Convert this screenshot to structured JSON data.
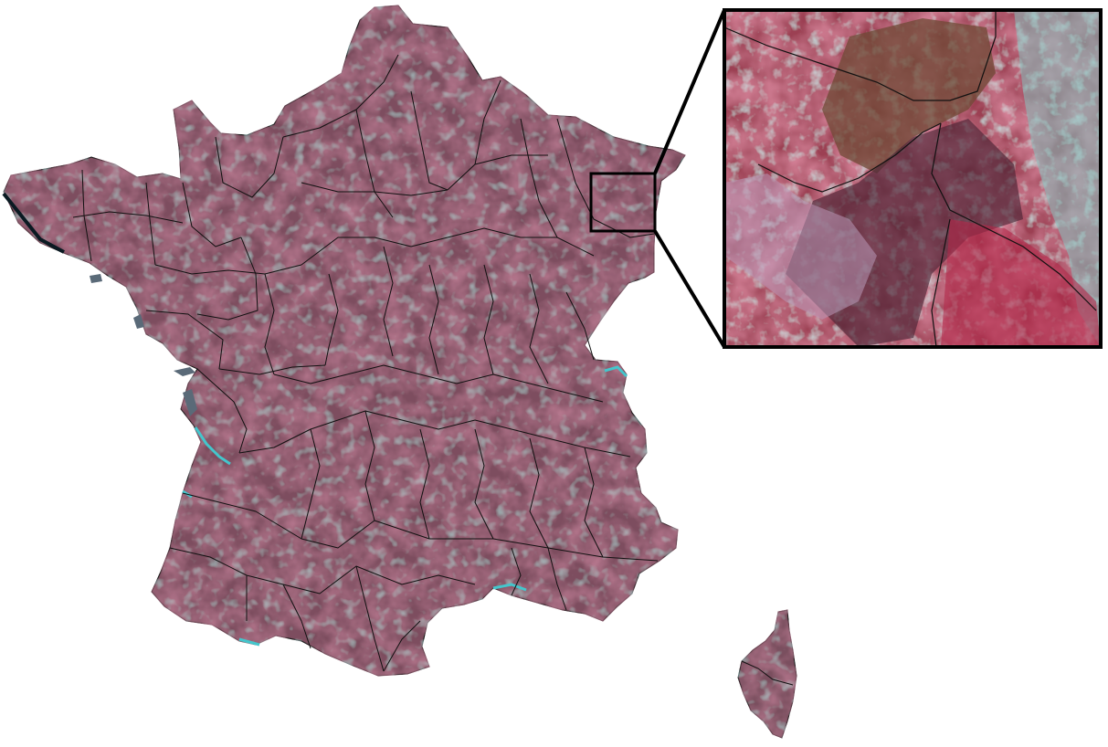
{
  "figure": {
    "type": "false-color satellite mosaic map",
    "region": "France",
    "colors": {
      "background": "#ffffff",
      "mainland_base": "#7d4e5f",
      "dark_vegetation": "#5a2a3a",
      "red_vegetation": "#b8455a",
      "pink_fields": "#c86b76",
      "teal_urban": "#7fb6b4",
      "water_cyan": "#44c6cc",
      "sea_black": "#0a1a22",
      "borders": "#111111",
      "callout_frame": "#000000"
    },
    "layers": {
      "mainland": "satellite-map-mainland",
      "corsica": "satellite-map-corsica",
      "department_boundaries": "department-borders",
      "zoom_highlight": "zoom-rectangle",
      "zoom_panel": "inset-zoom-panel"
    }
  }
}
